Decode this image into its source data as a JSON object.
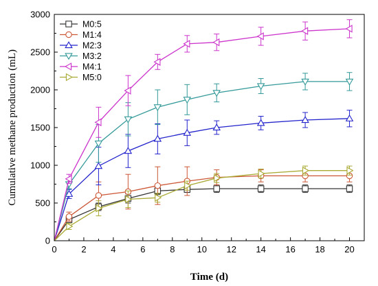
{
  "chart_data": {
    "type": "line",
    "xlabel": "Time (d)",
    "ylabel": "Cumulative methane production (mL)",
    "xlim": [
      0,
      21
    ],
    "ylim": [
      0,
      3000
    ],
    "xticks": [
      0,
      2,
      4,
      6,
      8,
      10,
      12,
      14,
      16,
      18,
      20
    ],
    "yticks": [
      0,
      500,
      1000,
      1500,
      2000,
      2500,
      3000
    ],
    "grid": false,
    "legend_position": "top-left",
    "x": [
      0,
      1,
      3,
      5,
      7,
      9,
      11,
      14,
      17,
      20
    ],
    "series": [
      {
        "name": "M0:5",
        "color": "#333333",
        "marker": "square",
        "values": [
          0,
          280,
          450,
          560,
          660,
          680,
          690,
          690,
          690,
          690
        ],
        "errors": [
          0,
          40,
          50,
          60,
          50,
          40,
          50,
          50,
          50,
          50
        ]
      },
      {
        "name": "M1:4",
        "color": "#cc5533",
        "marker": "circle",
        "values": [
          0,
          320,
          600,
          650,
          730,
          790,
          840,
          860,
          860,
          860
        ],
        "errors": [
          0,
          60,
          180,
          230,
          250,
          190,
          100,
          80,
          80,
          80
        ]
      },
      {
        "name": "M2:3",
        "color": "#2222cc",
        "marker": "triangle-up",
        "values": [
          0,
          620,
          990,
          1190,
          1350,
          1430,
          1500,
          1560,
          1600,
          1620
        ],
        "errors": [
          0,
          60,
          250,
          220,
          200,
          170,
          90,
          90,
          100,
          110
        ]
      },
      {
        "name": "M3:2",
        "color": "#339999",
        "marker": "triangle-down",
        "values": [
          0,
          750,
          1290,
          1610,
          1770,
          1870,
          1960,
          2050,
          2110,
          2110
        ],
        "errors": [
          0,
          60,
          250,
          220,
          230,
          200,
          120,
          100,
          110,
          120
        ]
      },
      {
        "name": "M4:1",
        "color": "#cc33cc",
        "marker": "triangle-left",
        "values": [
          0,
          820,
          1570,
          1990,
          2370,
          2610,
          2630,
          2710,
          2780,
          2810
        ],
        "errors": [
          0,
          60,
          200,
          200,
          100,
          110,
          110,
          120,
          120,
          120
        ]
      },
      {
        "name": "M5:0",
        "color": "#a9a933",
        "marker": "triangle-right",
        "values": [
          0,
          190,
          430,
          550,
          570,
          730,
          830,
          890,
          930,
          930
        ],
        "errors": [
          0,
          40,
          100,
          110,
          60,
          60,
          60,
          60,
          60,
          60
        ]
      }
    ]
  }
}
